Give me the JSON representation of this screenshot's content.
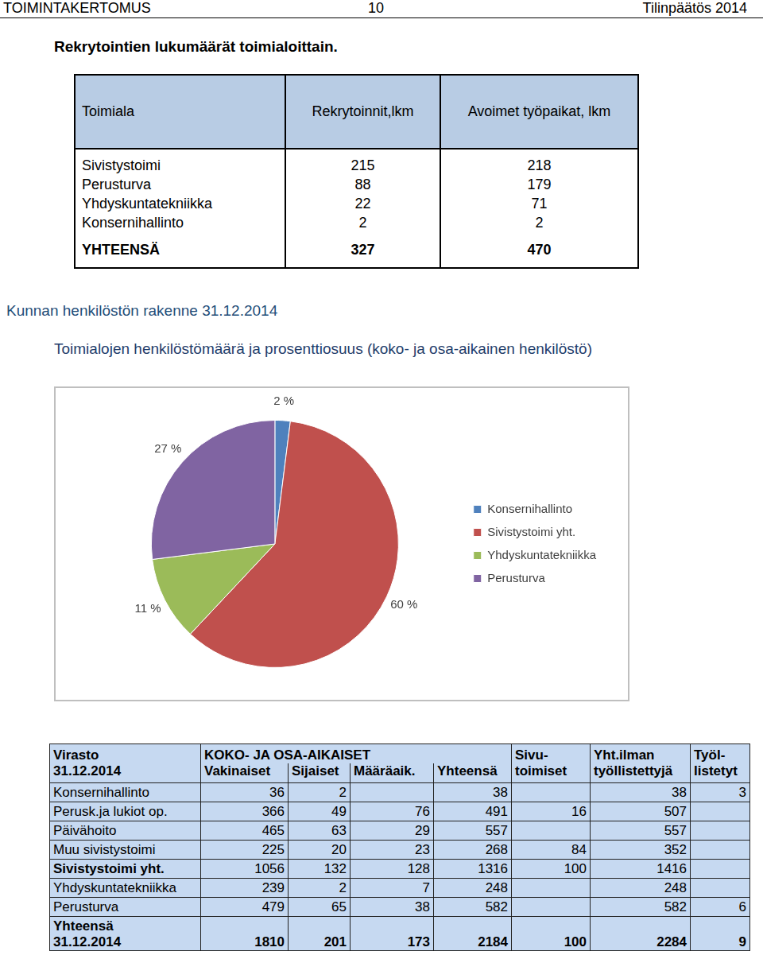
{
  "header": {
    "left": "TOIMINTAKERTOMUS",
    "center": 10,
    "right": "Tilinpäätös 2014"
  },
  "recruitment": {
    "title": "Rekrytointien lukumäärät toimialoittain.",
    "columns": [
      "Toimiala",
      "Rekrytoinnit,lkm",
      "Avoimet työpaikat, lkm"
    ],
    "rows": [
      [
        "Sivistystoimi",
        215,
        218
      ],
      [
        "Perusturva",
        88,
        179
      ],
      [
        "Yhdyskuntatekniikka",
        22,
        71
      ],
      [
        "Konsernihallinto",
        2,
        2
      ]
    ],
    "total": [
      "YHTEENSÄ",
      327,
      470
    ]
  },
  "section_title": "Kunnan henkilöstön rakenne 31.12.2014",
  "chart_data": {
    "type": "pie",
    "title": "Toimialojen henkilöstömäärä ja prosenttiosuus (koko- ja osa-aikainen henkilöstö)",
    "categories": [
      "Konsernihallinto",
      "Sivistystoimi yht.",
      "Yhdyskuntatekniikka",
      "Perusturva"
    ],
    "values": [
      2,
      60,
      11,
      27
    ],
    "value_labels": [
      "2 %",
      "60 %",
      "11 %",
      "27 %"
    ],
    "colors": [
      "#4f81bd",
      "#c0504d",
      "#9bbb59",
      "#8064a2"
    ],
    "data_labels": true,
    "legend": "right"
  },
  "staff_table": {
    "header_rows": [
      [
        "Virasto",
        "KOKO- JA OSA-AIKAISET",
        null,
        null,
        null,
        "Sivu-",
        "Yht.ilman",
        "Työl-"
      ],
      [
        "31.12.2014",
        "Vakinaiset",
        "Sijaiset",
        "Määräaik.",
        "Yhteensä",
        "toimiset",
        "työllistettyjä",
        "listetyt"
      ]
    ],
    "rows": [
      [
        "Konsernihallinto",
        36,
        2,
        null,
        38,
        null,
        38,
        3
      ],
      [
        "Perusk.ja lukiot op.",
        366,
        49,
        76,
        491,
        16,
        507,
        null
      ],
      [
        "Päivähoito",
        465,
        63,
        29,
        557,
        null,
        557,
        null
      ],
      [
        "Muu sivistystoimi",
        225,
        20,
        23,
        268,
        84,
        352,
        null
      ],
      [
        "Sivistystoimi yht.",
        1056,
        132,
        128,
        1316,
        100,
        1416,
        null
      ],
      [
        "Yhdyskuntatekniikka",
        239,
        2,
        7,
        248,
        null,
        248,
        null
      ],
      [
        "Perusturva",
        479,
        65,
        38,
        582,
        null,
        582,
        6
      ],
      [
        "Yhteensä\n31.12.2014",
        1810,
        201,
        173,
        2184,
        100,
        2284,
        9
      ]
    ]
  }
}
